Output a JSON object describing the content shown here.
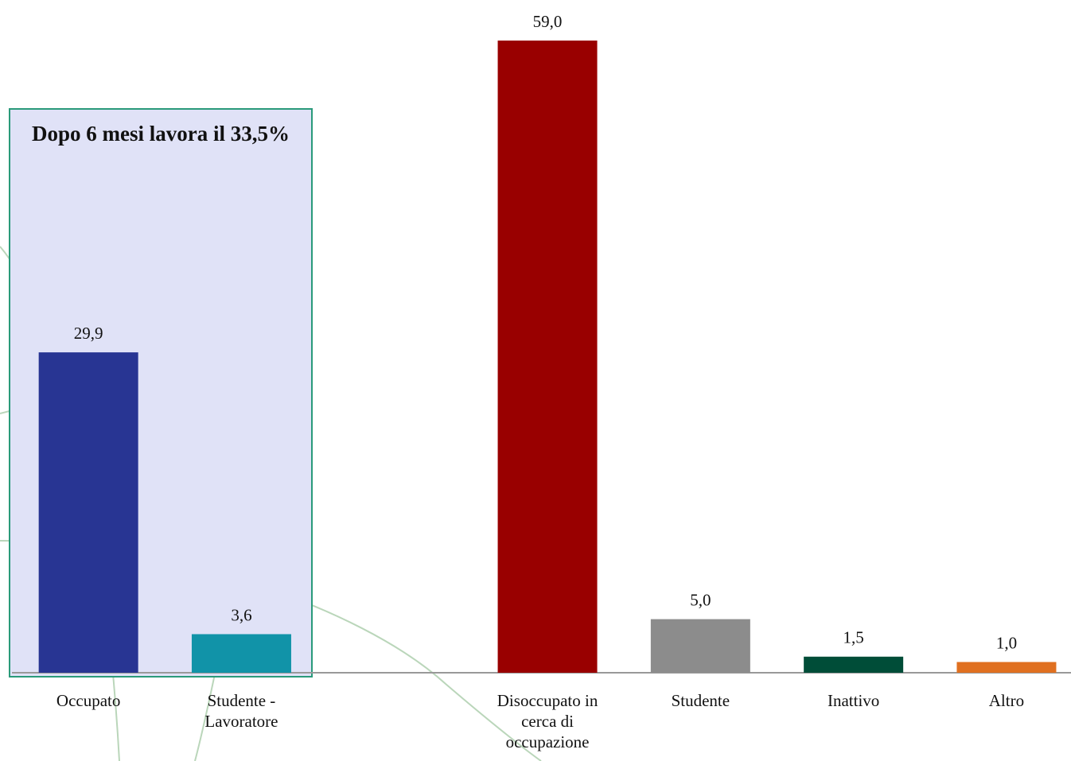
{
  "chart_data": {
    "type": "bar",
    "categories": [
      "Occupato",
      "Studente - Lavoratore",
      null,
      "Disoccupato in cerca di occupazione",
      "Studente",
      "Inattivo",
      "Altro"
    ],
    "values": [
      29.9,
      3.6,
      null,
      59.0,
      5.0,
      1.5,
      1.0
    ],
    "value_labels": [
      "29,9",
      "3,6",
      null,
      "59,0",
      "5,0",
      "1,5",
      "1,0"
    ],
    "colors": [
      "#283593",
      "#1193a8",
      null,
      "#990000",
      "#8c8c8c",
      "#004d38",
      "#e07020"
    ],
    "annotation": "Dopo 6 mesi lavora il 33,5%"
  }
}
